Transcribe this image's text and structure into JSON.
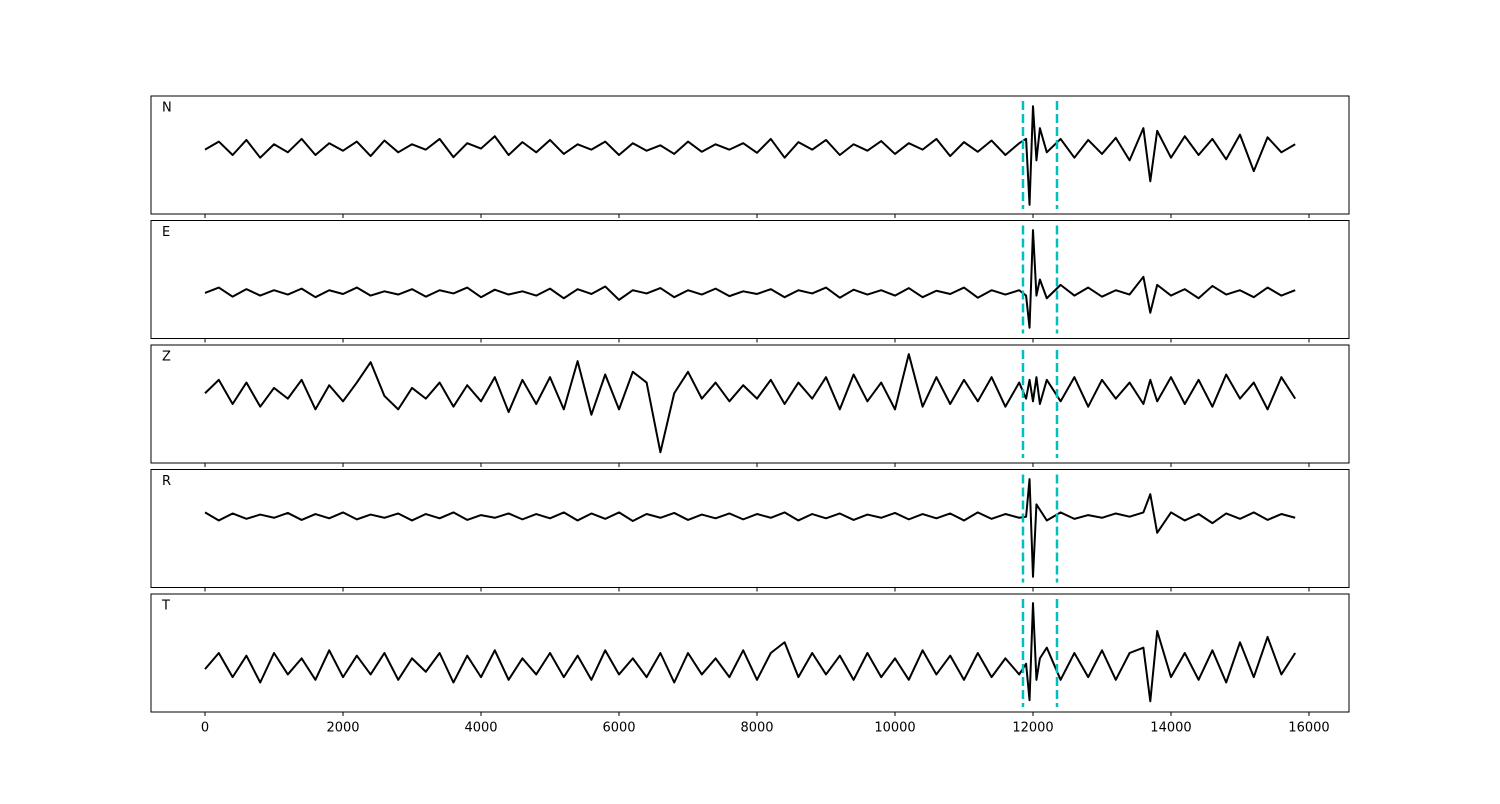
{
  "chart_data": {
    "type": "line",
    "x": [
      0,
      200,
      400,
      600,
      800,
      1000,
      1200,
      1400,
      1600,
      1800,
      2000,
      2200,
      2400,
      2600,
      2800,
      3000,
      3200,
      3400,
      3600,
      3800,
      4000,
      4200,
      4400,
      4600,
      4800,
      5000,
      5200,
      5400,
      5600,
      5800,
      6000,
      6200,
      6400,
      6600,
      6800,
      7000,
      7200,
      7400,
      7600,
      7800,
      8000,
      8200,
      8400,
      8600,
      8800,
      9000,
      9200,
      9400,
      9600,
      9800,
      10000,
      10200,
      10400,
      10600,
      10800,
      11000,
      11200,
      11400,
      11600,
      11800,
      11900,
      11950,
      12000,
      12050,
      12100,
      12200,
      12400,
      12600,
      12800,
      13000,
      13200,
      13400,
      13600,
      13700,
      13800,
      14000,
      14200,
      14400,
      14600,
      14800,
      15000,
      15200,
      15400,
      15600,
      15800
    ],
    "series": [
      {
        "name": "N",
        "color": "#000000",
        "values": [
          0.1,
          0.25,
          0.0,
          0.28,
          -0.05,
          0.2,
          0.05,
          0.3,
          0.0,
          0.22,
          0.08,
          0.25,
          -0.02,
          0.27,
          0.05,
          0.2,
          0.1,
          0.3,
          -0.04,
          0.22,
          0.12,
          0.35,
          0.0,
          0.24,
          0.05,
          0.28,
          0.02,
          0.2,
          0.1,
          0.25,
          0.0,
          0.22,
          0.08,
          0.18,
          0.02,
          0.25,
          0.06,
          0.2,
          0.1,
          0.22,
          0.04,
          0.3,
          -0.05,
          0.24,
          0.1,
          0.28,
          0.0,
          0.2,
          0.08,
          0.26,
          0.02,
          0.22,
          0.1,
          0.3,
          -0.02,
          0.24,
          0.06,
          0.27,
          0.0,
          0.22,
          0.3,
          -0.93,
          0.91,
          -0.1,
          0.5,
          0.05,
          0.3,
          -0.05,
          0.28,
          0.02,
          0.32,
          -0.1,
          0.5,
          -0.49,
          0.45,
          -0.05,
          0.35,
          0.0,
          0.3,
          -0.08,
          0.38,
          -0.3,
          0.33,
          0.05,
          0.2
        ]
      },
      {
        "name": "E",
        "color": "#000000",
        "values": [
          -0.25,
          -0.15,
          -0.32,
          -0.18,
          -0.3,
          -0.2,
          -0.28,
          -0.17,
          -0.33,
          -0.2,
          -0.27,
          -0.15,
          -0.3,
          -0.22,
          -0.28,
          -0.18,
          -0.32,
          -0.2,
          -0.26,
          -0.15,
          -0.33,
          -0.19,
          -0.28,
          -0.22,
          -0.3,
          -0.17,
          -0.35,
          -0.18,
          -0.27,
          -0.13,
          -0.38,
          -0.2,
          -0.26,
          -0.16,
          -0.33,
          -0.2,
          -0.28,
          -0.17,
          -0.31,
          -0.22,
          -0.27,
          -0.18,
          -0.33,
          -0.2,
          -0.26,
          -0.15,
          -0.34,
          -0.19,
          -0.28,
          -0.2,
          -0.3,
          -0.16,
          -0.33,
          -0.21,
          -0.27,
          -0.15,
          -0.34,
          -0.2,
          -0.28,
          -0.2,
          -0.3,
          -0.9,
          0.92,
          -0.3,
          0.0,
          -0.35,
          -0.1,
          -0.3,
          -0.15,
          -0.32,
          -0.2,
          -0.28,
          0.05,
          -0.62,
          -0.1,
          -0.3,
          -0.18,
          -0.35,
          -0.12,
          -0.28,
          -0.2,
          -0.33,
          -0.15,
          -0.3,
          -0.2
        ]
      },
      {
        "name": "Z",
        "color": "#000000",
        "values": [
          0.2,
          0.45,
          0.0,
          0.4,
          -0.05,
          0.3,
          0.1,
          0.45,
          -0.1,
          0.35,
          0.05,
          0.4,
          0.78,
          0.15,
          -0.1,
          0.3,
          0.1,
          0.4,
          -0.05,
          0.35,
          0.05,
          0.5,
          -0.15,
          0.45,
          0.0,
          0.5,
          -0.1,
          0.8,
          -0.2,
          0.55,
          -0.1,
          0.6,
          0.4,
          -0.9,
          0.2,
          0.6,
          0.1,
          0.4,
          0.05,
          0.35,
          0.1,
          0.45,
          0.0,
          0.4,
          0.1,
          0.5,
          -0.1,
          0.55,
          0.05,
          0.4,
          -0.1,
          0.93,
          -0.05,
          0.5,
          0.0,
          0.45,
          0.05,
          0.5,
          -0.05,
          0.4,
          0.1,
          0.45,
          0.05,
          0.5,
          0.0,
          0.45,
          0.05,
          0.5,
          -0.05,
          0.45,
          0.1,
          0.4,
          0.0,
          0.45,
          0.05,
          0.5,
          0.0,
          0.45,
          -0.05,
          0.55,
          0.1,
          0.4,
          -0.1,
          0.5,
          0.1
        ]
      },
      {
        "name": "R",
        "color": "#000000",
        "values": [
          0.3,
          0.15,
          0.28,
          0.18,
          0.26,
          0.2,
          0.29,
          0.16,
          0.27,
          0.19,
          0.3,
          0.17,
          0.26,
          0.2,
          0.28,
          0.15,
          0.27,
          0.19,
          0.3,
          0.16,
          0.25,
          0.2,
          0.28,
          0.17,
          0.27,
          0.19,
          0.3,
          0.15,
          0.28,
          0.18,
          0.3,
          0.14,
          0.27,
          0.2,
          0.29,
          0.16,
          0.26,
          0.19,
          0.28,
          0.17,
          0.27,
          0.2,
          0.3,
          0.15,
          0.27,
          0.19,
          0.28,
          0.16,
          0.26,
          0.2,
          0.29,
          0.17,
          0.27,
          0.19,
          0.28,
          0.15,
          0.3,
          0.18,
          0.27,
          0.2,
          0.22,
          0.92,
          -0.9,
          0.45,
          0.35,
          0.15,
          0.3,
          0.18,
          0.25,
          0.2,
          0.28,
          0.22,
          0.3,
          0.64,
          -0.08,
          0.3,
          0.15,
          0.27,
          0.1,
          0.28,
          0.18,
          0.3,
          0.16,
          0.27,
          0.2
        ]
      },
      {
        "name": "T",
        "color": "#000000",
        "values": [
          -0.3,
          0.0,
          -0.45,
          -0.05,
          -0.55,
          0.0,
          -0.4,
          -0.1,
          -0.5,
          0.05,
          -0.45,
          -0.05,
          -0.4,
          0.0,
          -0.5,
          -0.1,
          -0.35,
          0.0,
          -0.55,
          -0.05,
          -0.45,
          0.05,
          -0.5,
          -0.1,
          -0.4,
          0.0,
          -0.45,
          -0.05,
          -0.5,
          0.05,
          -0.4,
          -0.1,
          -0.45,
          0.0,
          -0.55,
          0.0,
          -0.4,
          -0.1,
          -0.45,
          0.05,
          -0.5,
          0.0,
          0.2,
          -0.45,
          0.0,
          -0.4,
          -0.05,
          -0.5,
          0.0,
          -0.45,
          -0.1,
          -0.5,
          0.05,
          -0.4,
          -0.05,
          -0.5,
          0.0,
          -0.45,
          -0.1,
          -0.4,
          -0.2,
          -0.88,
          0.93,
          -0.5,
          -0.1,
          0.1,
          -0.5,
          0.0,
          -0.45,
          0.05,
          -0.5,
          0.0,
          0.1,
          -0.9,
          0.41,
          -0.45,
          0.0,
          -0.5,
          0.05,
          -0.55,
          0.2,
          -0.45,
          0.3,
          -0.4,
          0.0
        ]
      }
    ],
    "xlim": [
      -783,
      16580
    ],
    "xticks": [
      0,
      2000,
      4000,
      6000,
      8000,
      10000,
      12000,
      14000,
      16000
    ],
    "ylim": [
      -1.1,
      1.1
    ],
    "vlines": {
      "x": [
        11855,
        12348
      ],
      "color": "#00bfbf",
      "linestyle": "dashed"
    }
  }
}
